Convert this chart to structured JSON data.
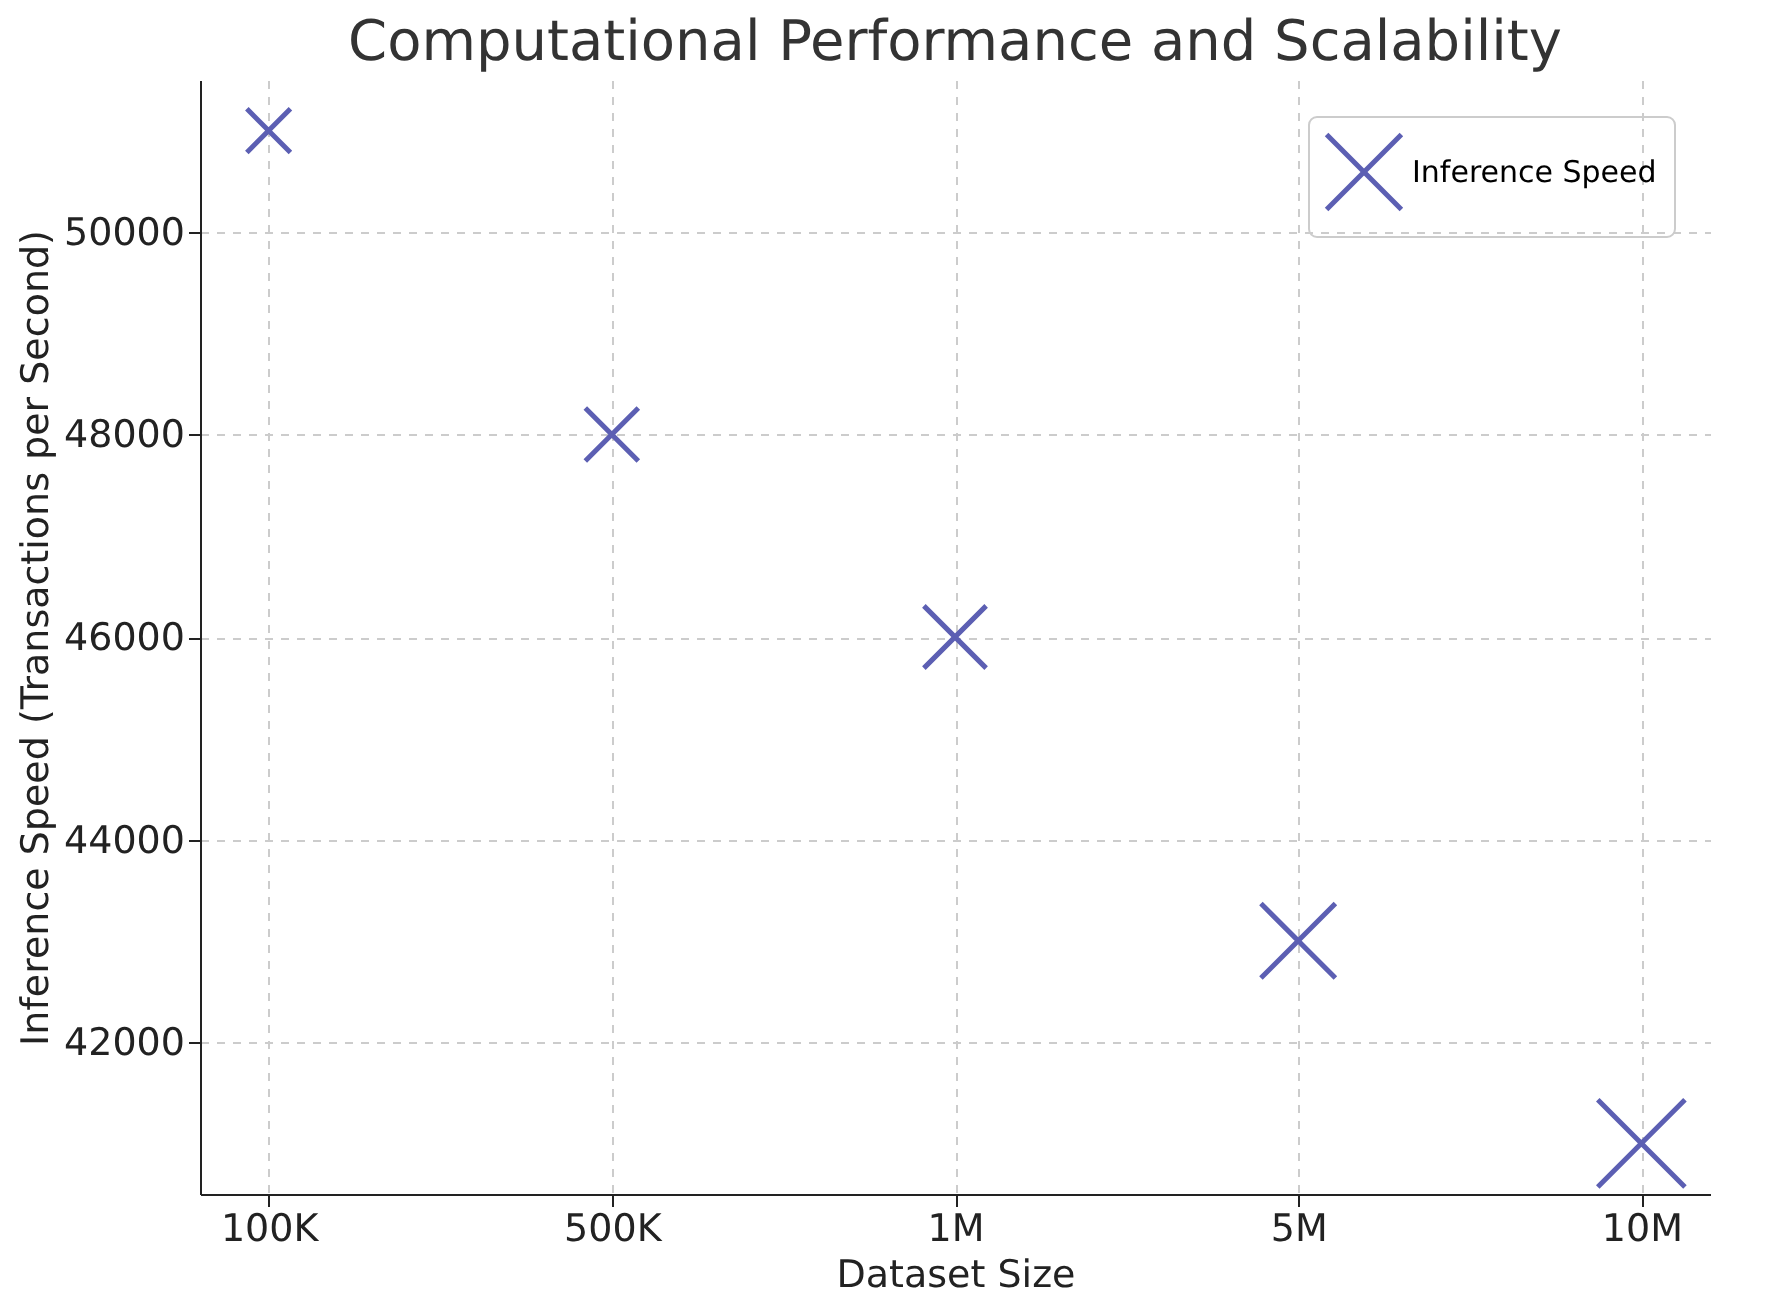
{
  "chart_data": {
    "type": "bubble",
    "title": "Computational Performance and Scalability",
    "xlabel": "Dataset Size",
    "ylabel": "Inference Speed (Transactions per Second)",
    "categories": [
      "100K",
      "500K",
      "1M",
      "5M",
      "10M"
    ],
    "series": [
      {
        "name": "Inference Speed",
        "color": "#5c5fb3",
        "values": [
          51000,
          48000,
          46000,
          43000,
          41000
        ],
        "sizes": [
          0.25,
          0.37,
          0.51,
          0.73,
          1
        ]
      }
    ],
    "ylim": [
      40500,
      51500
    ],
    "yticks": [
      42000,
      44000,
      46000,
      48000,
      50000
    ],
    "grid": true,
    "legend": "top right",
    "marker": "cross"
  }
}
